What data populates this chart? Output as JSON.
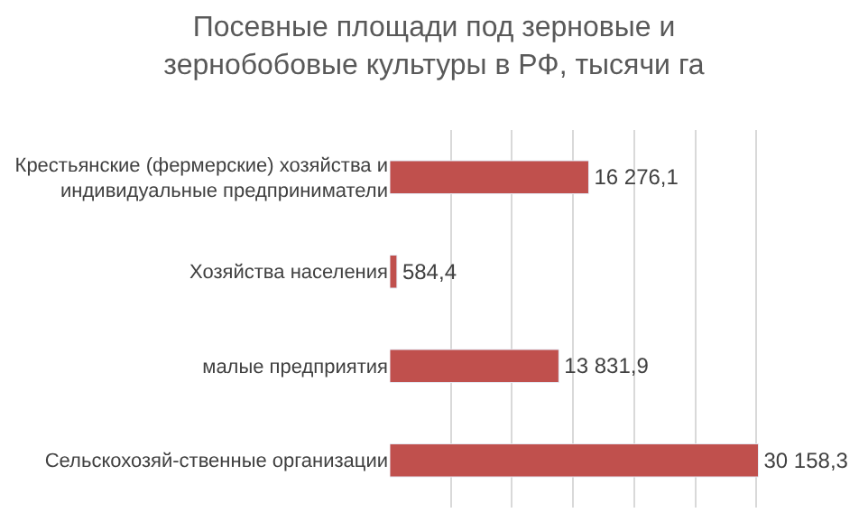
{
  "chart_data": {
    "type": "bar",
    "orientation": "horizontal",
    "title": "Посевные площади под зерновые и зернобобовые культуры в РФ, тысячи га",
    "categories": [
      "Крестьянские (фермерские) хозяйства и индивидуальные предприниматели",
      "Хозяйства населения",
      "малые предприятия",
      "Сельскохозяй-ственные организации"
    ],
    "values": [
      16276.1,
      584.4,
      13831.9,
      30158.3
    ],
    "value_labels": [
      "16 276,1",
      "584,4",
      "13 831,9",
      "30 158,3"
    ],
    "color": "#c0504d",
    "grid": "x",
    "tick_labels": "y",
    "legend": false
  }
}
